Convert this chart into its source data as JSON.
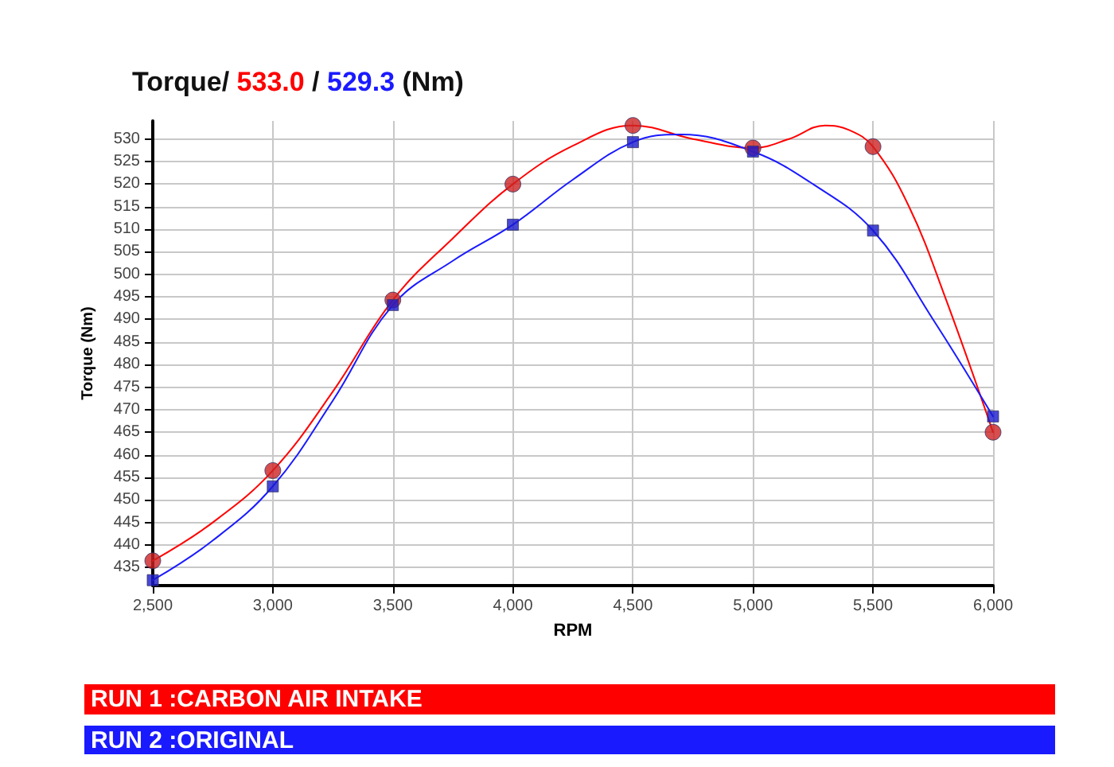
{
  "chart_data": {
    "type": "line",
    "title": "Torque/ 533.0 / 529.3 (Nm)",
    "xlabel": "RPM",
    "ylabel": "Torque (Nm)",
    "xlim": [
      2500,
      6000
    ],
    "xticks": [
      {
        "value": 2500,
        "label": "2,500"
      },
      {
        "value": 3000,
        "label": "3,000"
      },
      {
        "value": 3500,
        "label": "3,500"
      },
      {
        "value": 4000,
        "label": "4,000"
      },
      {
        "value": 4500,
        "label": "4,500"
      },
      {
        "value": 5000,
        "label": "5,000"
      },
      {
        "value": 5500,
        "label": "5,500"
      },
      {
        "value": 6000,
        "label": "6,000"
      }
    ],
    "ylim": [
      431,
      534
    ],
    "yticks": [
      435,
      440,
      445,
      450,
      455,
      460,
      465,
      470,
      475,
      480,
      485,
      490,
      495,
      500,
      505,
      510,
      515,
      520,
      525,
      530
    ],
    "grid": true,
    "legend": "bottom",
    "series": [
      {
        "name": "RUN 1 :CARBON AIR INTAKE",
        "color": "#ff0000",
        "marker": "none",
        "x": [
          2500,
          2750,
          3000,
          3250,
          3500,
          3750,
          4000,
          4250,
          4500,
          4750,
          5000,
          5150,
          5300,
          5400,
          5500,
          5650,
          5800,
          6000
        ],
        "values": [
          436.5,
          445,
          456.5,
          474,
          494.3,
          508,
          520,
          528.5,
          533,
          530,
          528,
          530,
          533,
          532,
          528.3,
          515,
          495,
          465
        ]
      },
      {
        "name": "RUN 2 :ORIGINAL",
        "color": "#1a1aff",
        "marker": "none",
        "x": [
          2500,
          2750,
          3000,
          3250,
          3500,
          3750,
          4000,
          4250,
          4500,
          4700,
          5000,
          5250,
          5500,
          5750,
          6000
        ],
        "values": [
          432.2,
          441,
          453,
          472,
          493.2,
          503,
          511,
          521,
          529.3,
          531,
          527.2,
          520,
          509.7,
          490,
          468.5
        ]
      },
      {
        "color": "#cc2222",
        "type": "scatter",
        "marker": "circle",
        "x": [
          2500,
          3000,
          3500,
          4000,
          4500,
          5000,
          5500,
          6000
        ],
        "values": [
          436.5,
          456.5,
          494.3,
          520,
          533,
          528,
          528.3,
          465
        ]
      },
      {
        "color": "#1a1acc",
        "type": "scatter",
        "marker": "square",
        "x": [
          2500,
          3000,
          3500,
          4000,
          4500,
          5000,
          5500,
          6000
        ],
        "values": [
          432.2,
          453,
          493.2,
          511,
          529.3,
          527.2,
          509.7,
          468.5
        ]
      }
    ]
  }
}
